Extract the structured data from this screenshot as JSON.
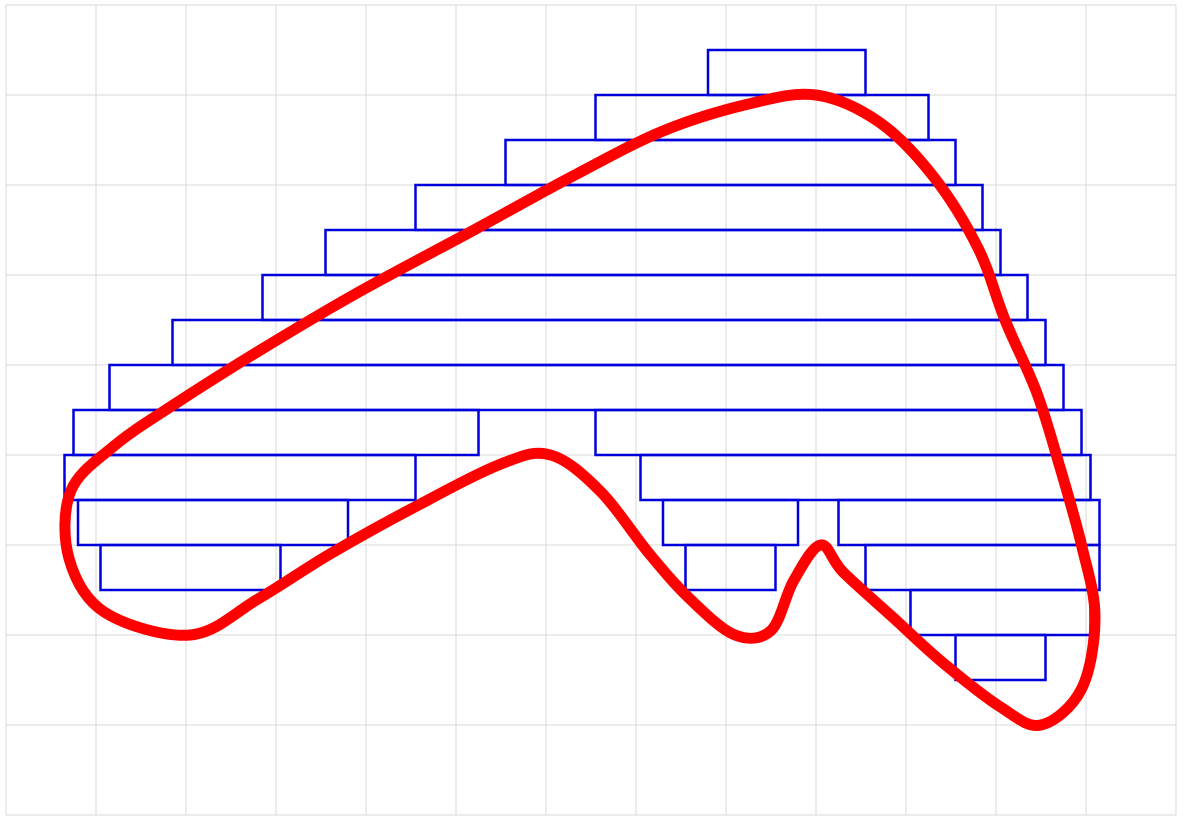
{
  "colors": {
    "background": "#ffffff",
    "grid": "#d9d9d9",
    "curve": "#ff0000",
    "boxes": "#0000dd"
  },
  "grid": {
    "columns": 13,
    "rows": 9
  },
  "strips": [
    {
      "row": 1,
      "x": [
        [
          7.8,
          9.55
        ]
      ]
    },
    {
      "row": 2,
      "x": [
        [
          6.55,
          10.25
        ]
      ]
    },
    {
      "row": 3,
      "x": [
        [
          5.55,
          10.55
        ]
      ]
    },
    {
      "row": 4,
      "x": [
        [
          4.55,
          10.85
        ]
      ]
    },
    {
      "row": 5,
      "x": [
        [
          3.55,
          11.05
        ]
      ]
    },
    {
      "row": 6,
      "x": [
        [
          2.85,
          11.35
        ]
      ]
    },
    {
      "row": 7,
      "x": [
        [
          1.85,
          11.55
        ]
      ]
    },
    {
      "row": 8,
      "x": [
        [
          1.15,
          11.75
        ]
      ]
    },
    {
      "row": 9,
      "x": [
        [
          0.75,
          5.25
        ],
        [
          6.55,
          11.95
        ]
      ]
    },
    {
      "row": 10,
      "x": [
        [
          0.65,
          4.55
        ],
        [
          7.05,
          12.05
        ]
      ]
    },
    {
      "row": 11,
      "x": [
        [
          0.8,
          3.8
        ],
        [
          7.3,
          8.8
        ],
        [
          9.25,
          12.15
        ]
      ]
    },
    {
      "row": 12,
      "x": [
        [
          1.05,
          3.05
        ],
        [
          7.55,
          8.55
        ],
        [
          9.55,
          12.15
        ]
      ]
    },
    {
      "row": 13,
      "x": [
        [
          10.05,
          12.05
        ]
      ]
    },
    {
      "row": 14,
      "x": [
        [
          10.55,
          11.55
        ]
      ]
    }
  ],
  "curve_points": [
    [
      9.0,
      1.0
    ],
    [
      9.7,
      1.3
    ],
    [
      10.3,
      1.9
    ],
    [
      10.8,
      2.7
    ],
    [
      11.1,
      3.5
    ],
    [
      11.45,
      4.3
    ],
    [
      11.7,
      5.1
    ],
    [
      11.95,
      6.0
    ],
    [
      12.1,
      6.8
    ],
    [
      11.95,
      7.6
    ],
    [
      11.5,
      8.0
    ],
    [
      11.05,
      7.8
    ],
    [
      10.4,
      7.3
    ],
    [
      9.85,
      6.8
    ],
    [
      9.3,
      6.3
    ],
    [
      9.05,
      6.0
    ],
    [
      8.75,
      6.4
    ],
    [
      8.5,
      6.95
    ],
    [
      8.1,
      7.0
    ],
    [
      7.6,
      6.6
    ],
    [
      7.15,
      6.1
    ],
    [
      6.6,
      5.4
    ],
    [
      6.05,
      5.0
    ],
    [
      5.5,
      5.1
    ],
    [
      4.5,
      5.6
    ],
    [
      3.6,
      6.1
    ],
    [
      2.8,
      6.6
    ],
    [
      2.05,
      7.0
    ],
    [
      1.1,
      6.75
    ],
    [
      0.7,
      6.15
    ],
    [
      0.72,
      5.4
    ],
    [
      1.2,
      4.9
    ],
    [
      1.85,
      4.45
    ],
    [
      2.8,
      3.85
    ],
    [
      3.9,
      3.2
    ],
    [
      5.2,
      2.5
    ],
    [
      6.3,
      1.9
    ],
    [
      7.3,
      1.4
    ],
    [
      8.25,
      1.1
    ]
  ]
}
